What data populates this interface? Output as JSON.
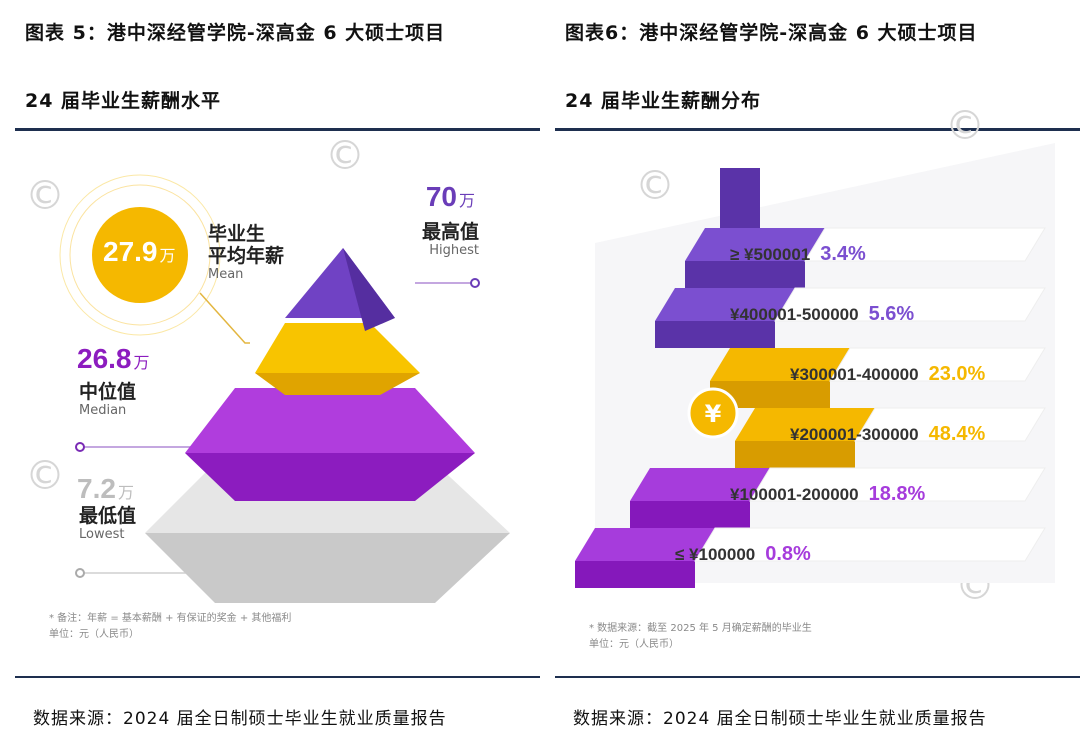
{
  "left": {
    "title": "图表 5：港中深经管学院-深高金 6 大硕士项目",
    "subtitle": "24 届毕业生薪酬水平",
    "mean": {
      "value": "27.9",
      "unit": "万",
      "cn": "毕业生平均年薪",
      "cn_line1": "毕业生",
      "cn_line2": "平均年薪",
      "en": "Mean"
    },
    "highest": {
      "value": "70",
      "unit": "万",
      "cn": "最高值",
      "en": "Highest"
    },
    "median": {
      "value": "26.8",
      "unit": "万",
      "cn": "中位值",
      "en": "Median"
    },
    "lowest": {
      "value": "7.2",
      "unit": "万",
      "cn": "最低值",
      "en": "Lowest"
    },
    "note_line1": "* 备注：年薪 = 基本薪酬 + 有保证的奖金 + 其他福利",
    "note_line2": "单位：元（人民币）",
    "source": "数据来源：2024 届全日制硕士毕业生就业质量报告",
    "colors": {
      "purple_dark": "#6a3db8",
      "yellow": "#f5b800",
      "magenta": "#9b1dc9",
      "grey": "#d9d9d9"
    }
  },
  "right": {
    "title": "图表6：港中深经管学院-深高金 6 大硕士项目",
    "subtitle": "24 届毕业生薪酬分布",
    "note_line1": "* 数据来源：截至 2025 年 5 月确定薪酬的毕业生",
    "note_line2": "单位：元（人民币）",
    "source": "数据来源：2024 届全日制硕士毕业生就业质量报告",
    "yen_symbol": "¥"
  },
  "chart_data": [
    {
      "type": "table",
      "title": "24 届毕业生薪酬水平",
      "unit": "万",
      "rows": [
        {
          "label": "最高值",
          "en": "Highest",
          "value": 70
        },
        {
          "label": "毕业生平均年薪",
          "en": "Mean",
          "value": 27.9
        },
        {
          "label": "中位值",
          "en": "Median",
          "value": 26.8
        },
        {
          "label": "最低值",
          "en": "Lowest",
          "value": 7.2
        }
      ]
    },
    {
      "type": "bar",
      "title": "24 届毕业生薪酬分布",
      "categories": [
        "≥ ¥500001",
        "¥400001-500000",
        "¥300001-400000",
        "¥200001-300000",
        "¥100001-200000",
        "≤ ¥100000"
      ],
      "values": [
        3.4,
        5.6,
        23.0,
        48.4,
        18.8,
        0.8
      ],
      "labels": [
        "3.4%",
        "5.6%",
        "23.0%",
        "48.4%",
        "18.8%",
        "0.8%"
      ],
      "colors": [
        "#7b4fd0",
        "#7b4fd0",
        "#f5b800",
        "#f5b800",
        "#a63cdc",
        "#a63cdc"
      ]
    }
  ]
}
